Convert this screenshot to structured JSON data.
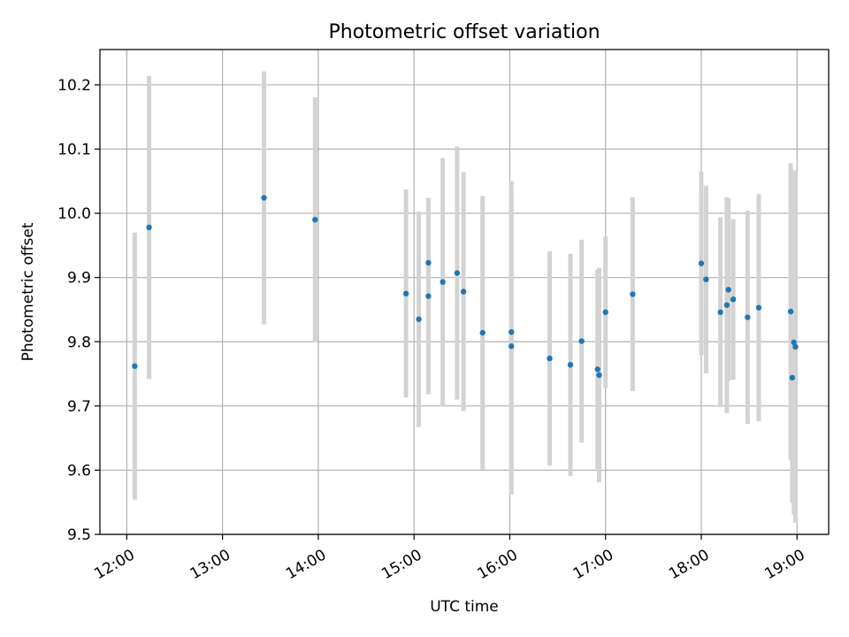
{
  "chart_data": {
    "type": "scatter",
    "title": "Photometric offset variation",
    "xlabel": "UTC time",
    "ylabel": "Photometric offset",
    "x_tick_labels": [
      "12:00",
      "13:00",
      "14:00",
      "15:00",
      "16:00",
      "17:00",
      "18:00",
      "19:00"
    ],
    "y_tick_labels": [
      "9.5",
      "9.6",
      "9.7",
      "9.8",
      "9.9",
      "10.0",
      "10.1",
      "10.2"
    ],
    "y_ticks": [
      9.5,
      9.6,
      9.7,
      9.8,
      9.9,
      10.0,
      10.1,
      10.2
    ],
    "ylim": [
      9.5,
      10.255
    ],
    "xlim_hours": [
      11.72,
      19.33
    ],
    "grid": true,
    "marker_color": "#1f77b4",
    "errorbar_color": "#d3d3d3",
    "points": [
      {
        "x": "12:05",
        "y": 9.762,
        "err": 0.208
      },
      {
        "x": "12:14",
        "y": 9.978,
        "err": 0.236
      },
      {
        "x": "13:26",
        "y": 10.024,
        "err": 0.197
      },
      {
        "x": "13:58",
        "y": 9.99,
        "err": 0.191
      },
      {
        "x": "14:55",
        "y": 9.875,
        "err": 0.162
      },
      {
        "x": "15:03",
        "y": 9.835,
        "err": 0.168
      },
      {
        "x": "15:09",
        "y": 9.923,
        "err": 0.078
      },
      {
        "x": "15:09",
        "y": 9.871,
        "err": 0.153
      },
      {
        "x": "15:18",
        "y": 9.893,
        "err": 0.193
      },
      {
        "x": "15:27",
        "y": 9.907,
        "err": 0.197
      },
      {
        "x": "15:31",
        "y": 9.878,
        "err": 0.186
      },
      {
        "x": "15:43",
        "y": 9.814,
        "err": 0.213
      },
      {
        "x": "16:01",
        "y": 9.815,
        "err": 0.235
      },
      {
        "x": "16:01",
        "y": 9.793,
        "err": 0.231
      },
      {
        "x": "16:25",
        "y": 9.774,
        "err": 0.167
      },
      {
        "x": "16:38",
        "y": 9.764,
        "err": 0.173
      },
      {
        "x": "16:45",
        "y": 9.801,
        "err": 0.158
      },
      {
        "x": "16:55",
        "y": 9.757,
        "err": 0.155
      },
      {
        "x": "16:56",
        "y": 9.748,
        "err": 0.167
      },
      {
        "x": "17:00",
        "y": 9.846,
        "err": 0.118
      },
      {
        "x": "17:17",
        "y": 9.874,
        "err": 0.151
      },
      {
        "x": "18:00",
        "y": 9.922,
        "err": 0.143
      },
      {
        "x": "18:03",
        "y": 9.897,
        "err": 0.146
      },
      {
        "x": "18:12",
        "y": 9.846,
        "err": 0.148
      },
      {
        "x": "18:16",
        "y": 9.857,
        "err": 0.168
      },
      {
        "x": "18:17",
        "y": 9.881,
        "err": 0.142
      },
      {
        "x": "18:20",
        "y": 9.866,
        "err": 0.125
      },
      {
        "x": "18:29",
        "y": 9.838,
        "err": 0.166
      },
      {
        "x": "18:36",
        "y": 9.853,
        "err": 0.177
      },
      {
        "x": "18:56",
        "y": 9.847,
        "err": 0.231
      },
      {
        "x": "18:57",
        "y": 9.744,
        "err": 0.195
      },
      {
        "x": "18:58",
        "y": 9.799,
        "err": 0.268
      },
      {
        "x": "18:59",
        "y": 9.792,
        "err": 0.274
      }
    ]
  }
}
